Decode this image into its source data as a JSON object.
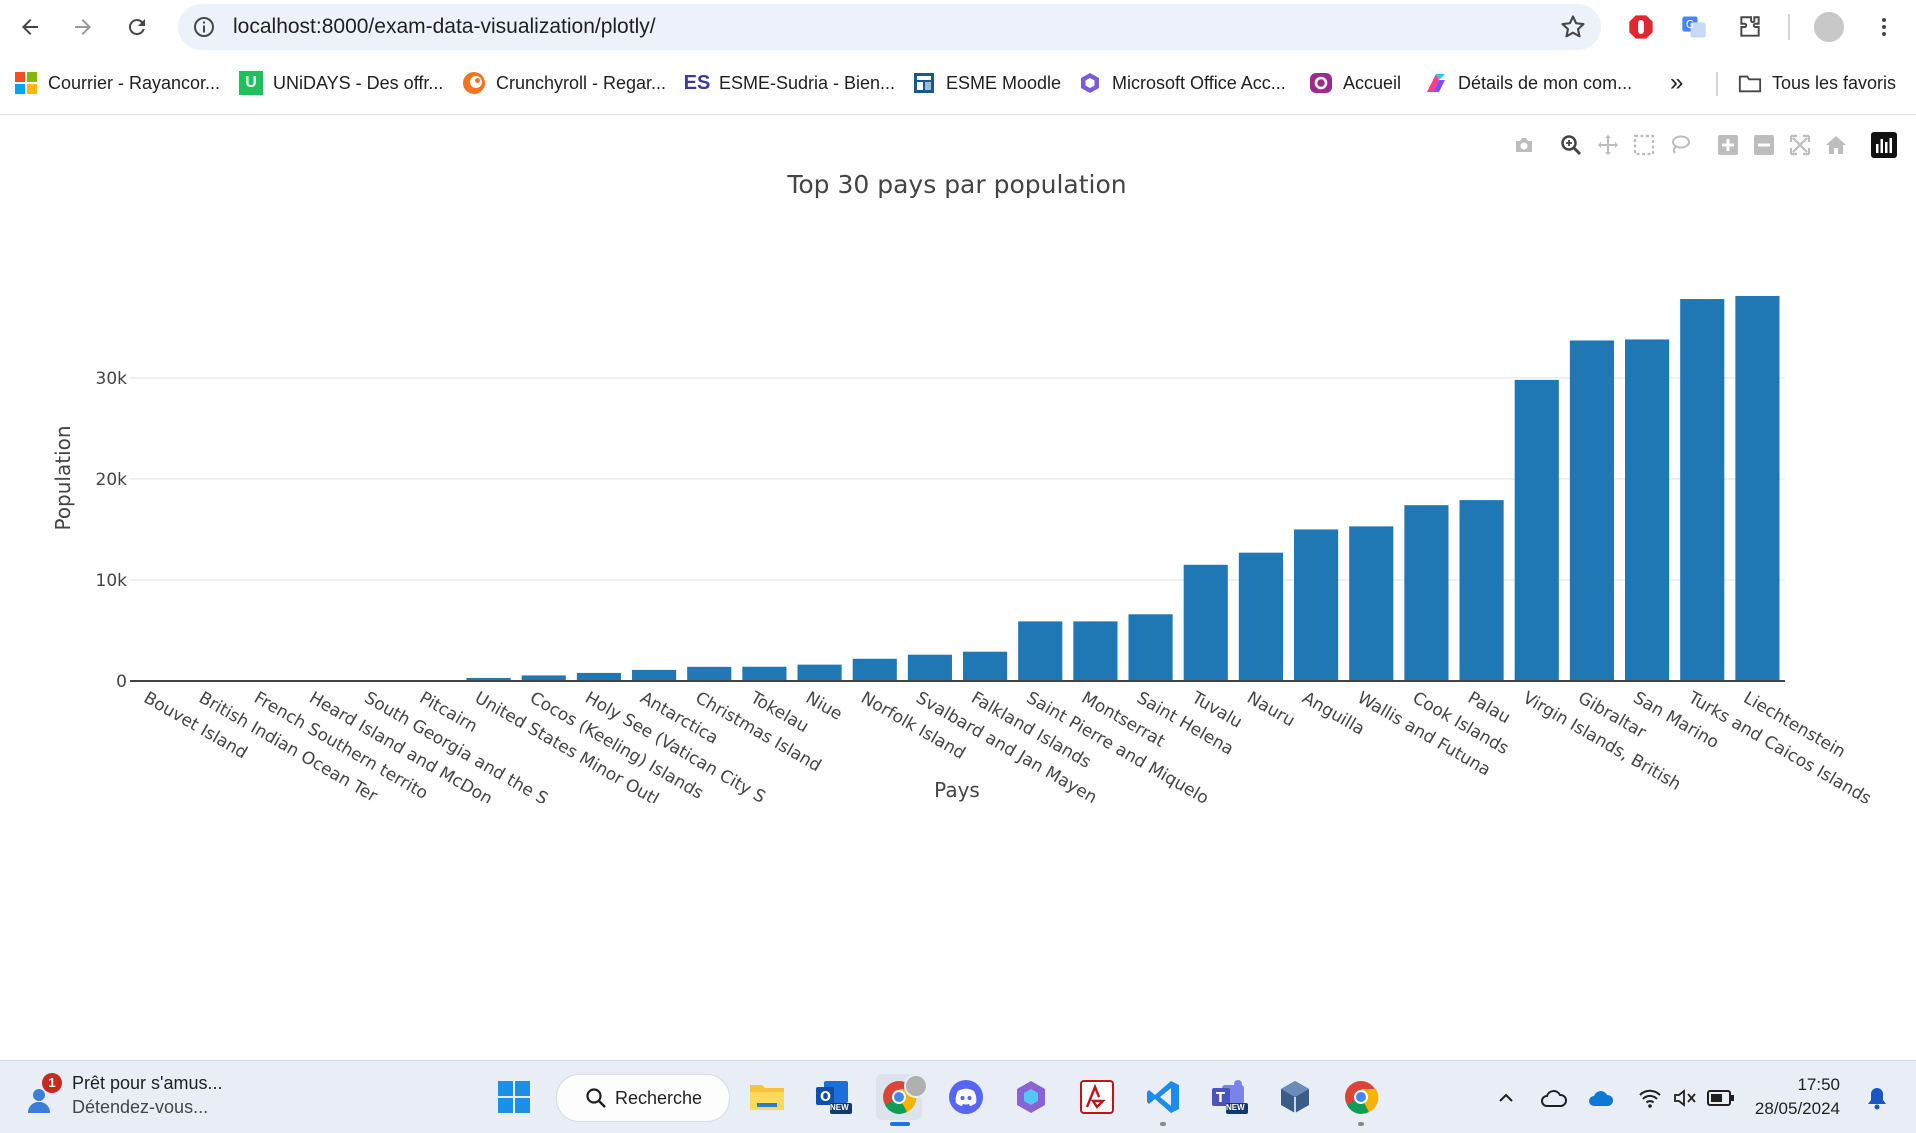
{
  "browser": {
    "url": "localhost:8000/exam-data-visualization/plotly/",
    "bookmarks": [
      {
        "label": "Courrier - Rayancor...",
        "icon": "microsoft-icon"
      },
      {
        "label": "UNiDAYS - Des offr...",
        "icon": "unidays-icon"
      },
      {
        "label": "Crunchyroll - Regar...",
        "icon": "crunchyroll-icon"
      },
      {
        "label": "ESME-Sudria - Bien...",
        "icon": "esme-icon",
        "icon_text": "ES"
      },
      {
        "label": "ESME Moodle",
        "icon": "moodle-icon"
      },
      {
        "label": "Microsoft Office Acc...",
        "icon": "office-icon"
      },
      {
        "label": "Accueil",
        "icon": "accueil-icon"
      },
      {
        "label": "Détails de mon com...",
        "icon": "details-icon"
      }
    ],
    "all_bookmarks_label": "Tous les favoris",
    "more_bookmarks": "»",
    "unidays_icon_text": "U"
  },
  "chart_data": {
    "type": "bar",
    "title": "Top 30 pays par population",
    "xlabel": "Pays",
    "ylabel": "Population",
    "color": "#1f77b4",
    "ylim": [
      0,
      38000
    ],
    "yticks": [
      0,
      10000,
      20000,
      30000
    ],
    "ytick_labels": [
      "0",
      "10k",
      "20k",
      "30k"
    ],
    "categories": [
      "Bouvet Island",
      "British Indian Ocean Ter",
      "French Southern territo",
      "Heard Island and McDon",
      "South Georgia and the S",
      "Pitcairn",
      "United States Minor Outl",
      "Cocos (Keeling) Islands",
      "Holy See (Vatican City S",
      "Antarctica",
      "Christmas Island",
      "Tokelau",
      "Niue",
      "Norfolk Island",
      "Svalbard and Jan Mayen",
      "Falkland Islands",
      "Saint Pierre and Miquelo",
      "Montserrat",
      "Saint Helena",
      "Tuvalu",
      "Nauru",
      "Anguilla",
      "Wallis and Futuna",
      "Cook Islands",
      "Palau",
      "Virgin Islands, British",
      "Gibraltar",
      "San Marino",
      "Turks and Caicos Islands",
      "Liechtenstein"
    ],
    "values": [
      0,
      0,
      0,
      0,
      30,
      56,
      300,
      550,
      800,
      1100,
      1400,
      1410,
      1620,
      2200,
      2600,
      2900,
      5900,
      5900,
      6600,
      11500,
      12700,
      15000,
      15300,
      17400,
      17900,
      29800,
      33700,
      33800,
      37800,
      38100
    ]
  },
  "taskbar": {
    "widget_title": "Prêt pour s'amus...",
    "widget_subtitle": "Détendez-vous...",
    "widget_badge": "1",
    "search_label": "Recherche",
    "new_badge": "NEW",
    "time": "17:50",
    "date": "28/05/2024"
  }
}
